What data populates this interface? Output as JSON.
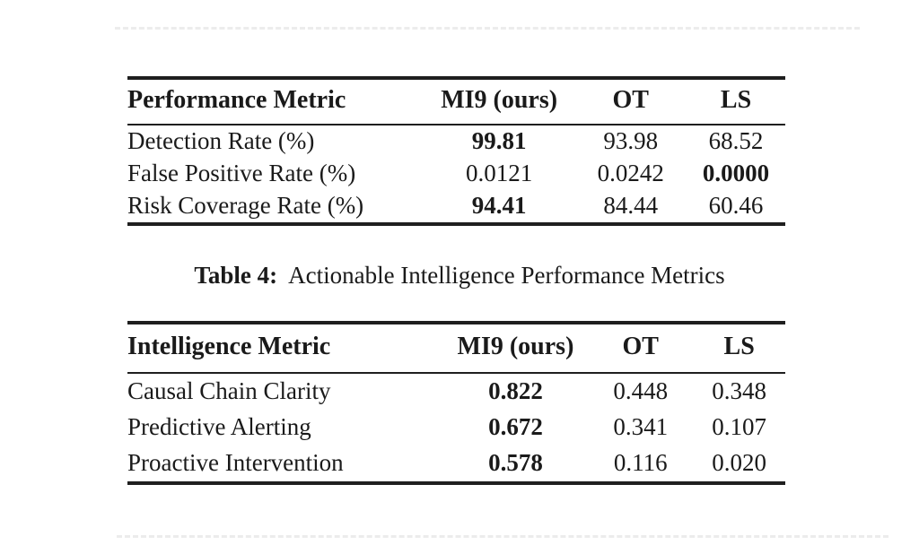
{
  "colors": {
    "background": "#ffffff",
    "text": "#1a1a1a",
    "rule": "#1f1f1f",
    "artifact_line": "#ececec"
  },
  "performance_table": {
    "columns": [
      "Performance Metric",
      "MI9 (ours)",
      "OT",
      "LS"
    ],
    "rows": [
      {
        "metric": "Detection Rate (%)",
        "values": [
          "99.81",
          "93.98",
          "68.52"
        ],
        "bold_values": [
          true,
          false,
          false
        ]
      },
      {
        "metric": "False Positive Rate (%)",
        "values": [
          "0.0121",
          "0.0242",
          "0.0000"
        ],
        "bold_values": [
          false,
          false,
          true
        ]
      },
      {
        "metric": "Risk Coverage Rate (%)",
        "values": [
          "94.41",
          "84.44",
          "60.46"
        ],
        "bold_values": [
          true,
          false,
          false
        ]
      }
    ]
  },
  "caption": {
    "label": "Table 4:",
    "text": "Actionable Intelligence Performance Metrics"
  },
  "intelligence_table": {
    "columns": [
      "Intelligence Metric",
      "MI9 (ours)",
      "OT",
      "LS"
    ],
    "rows": [
      {
        "metric": "Causal Chain Clarity",
        "values": [
          "0.822",
          "0.448",
          "0.348"
        ],
        "bold_values": [
          true,
          false,
          false
        ]
      },
      {
        "metric": "Predictive Alerting",
        "values": [
          "0.672",
          "0.341",
          "0.107"
        ],
        "bold_values": [
          true,
          false,
          false
        ]
      },
      {
        "metric": "Proactive Intervention",
        "values": [
          "0.578",
          "0.116",
          "0.020"
        ],
        "bold_values": [
          true,
          false,
          false
        ]
      }
    ]
  }
}
